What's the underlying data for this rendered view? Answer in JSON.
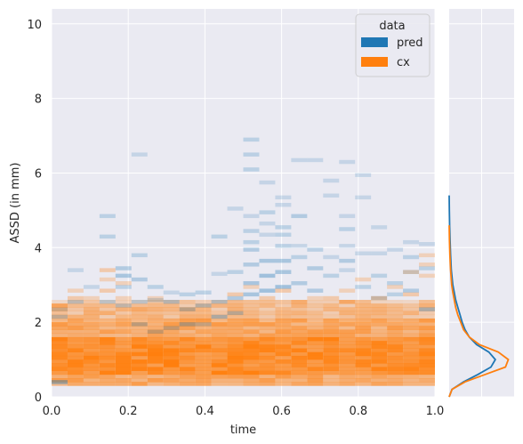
{
  "chart_data": [
    {
      "type": "heatmap",
      "xlabel": "time",
      "ylabel": "ASSD (in mm)",
      "xlim": [
        0,
        1
      ],
      "ylim": [
        0,
        10.4
      ],
      "xticks": [
        "0.0",
        "0.2",
        "0.4",
        "0.6",
        "0.8",
        "1.0"
      ],
      "yticks": [
        "0",
        "2",
        "4",
        "6",
        "8",
        "10"
      ],
      "grid": true,
      "legend": {
        "title": "data",
        "placement": "top-right",
        "entries": [
          "pred",
          "cx"
        ]
      },
      "x_bins": 24,
      "y_bin_width": 0.1,
      "series": [
        {
          "name": "pred",
          "color": "#1f77b4",
          "cells": [
            [
              0,
              0.35,
              0.9
            ],
            [
              0,
              2.1,
              0.5
            ],
            [
              0,
              2.3,
              0.4
            ],
            [
              1,
              3.35,
              0.4
            ],
            [
              1,
              2.5,
              0.5
            ],
            [
              2,
              2.9,
              0.4
            ],
            [
              3,
              4.8,
              0.5
            ],
            [
              3,
              4.25,
              0.5
            ],
            [
              3,
              2.5,
              0.5
            ],
            [
              4,
              3.4,
              0.6
            ],
            [
              4,
              3.2,
              0.7
            ],
            [
              4,
              2.9,
              0.5
            ],
            [
              4,
              2.4,
              0.5
            ],
            [
              5,
              6.45,
              0.4
            ],
            [
              5,
              3.75,
              0.5
            ],
            [
              5,
              3.1,
              0.6
            ],
            [
              5,
              2.5,
              0.5
            ],
            [
              5,
              1.9,
              0.6
            ],
            [
              6,
              2.9,
              0.5
            ],
            [
              6,
              2.55,
              0.5
            ],
            [
              6,
              1.7,
              0.5
            ],
            [
              7,
              2.75,
              0.4
            ],
            [
              7,
              2.5,
              0.6
            ],
            [
              7,
              1.8,
              0.5
            ],
            [
              8,
              2.7,
              0.5
            ],
            [
              8,
              2.3,
              0.6
            ],
            [
              8,
              1.9,
              0.7
            ],
            [
              9,
              2.75,
              0.5
            ],
            [
              9,
              2.4,
              0.6
            ],
            [
              9,
              1.9,
              0.5
            ],
            [
              10,
              4.25,
              0.5
            ],
            [
              10,
              3.25,
              0.4
            ],
            [
              10,
              2.5,
              0.6
            ],
            [
              10,
              2.1,
              0.7
            ],
            [
              11,
              5.0,
              0.4
            ],
            [
              11,
              3.3,
              0.5
            ],
            [
              11,
              2.6,
              0.6
            ],
            [
              11,
              2.2,
              0.6
            ],
            [
              12,
              6.85,
              0.5
            ],
            [
              12,
              6.45,
              0.5
            ],
            [
              12,
              6.05,
              0.5
            ],
            [
              12,
              4.8,
              0.4
            ],
            [
              12,
              4.4,
              0.5
            ],
            [
              12,
              4.1,
              0.5
            ],
            [
              12,
              3.9,
              0.6
            ],
            [
              12,
              3.5,
              0.6
            ],
            [
              12,
              3.0,
              0.7
            ],
            [
              12,
              2.7,
              0.7
            ],
            [
              13,
              5.7,
              0.4
            ],
            [
              13,
              4.9,
              0.5
            ],
            [
              13,
              4.6,
              0.4
            ],
            [
              13,
              4.3,
              0.4
            ],
            [
              13,
              3.6,
              0.7
            ],
            [
              13,
              3.2,
              0.8
            ],
            [
              13,
              2.8,
              0.8
            ],
            [
              14,
              5.3,
              0.4
            ],
            [
              14,
              5.1,
              0.4
            ],
            [
              14,
              4.5,
              0.5
            ],
            [
              14,
              4.3,
              0.5
            ],
            [
              14,
              4.0,
              0.5
            ],
            [
              14,
              3.6,
              0.7
            ],
            [
              14,
              3.3,
              0.7
            ],
            [
              14,
              2.9,
              0.8
            ],
            [
              15,
              6.3,
              0.4
            ],
            [
              15,
              4.8,
              0.6
            ],
            [
              15,
              4.0,
              0.4
            ],
            [
              15,
              3.7,
              0.5
            ],
            [
              15,
              3.0,
              0.6
            ],
            [
              16,
              6.3,
              0.4
            ],
            [
              16,
              3.9,
              0.5
            ],
            [
              16,
              3.4,
              0.6
            ],
            [
              16,
              2.8,
              0.6
            ],
            [
              17,
              5.75,
              0.4
            ],
            [
              17,
              5.35,
              0.4
            ],
            [
              17,
              3.7,
              0.4
            ],
            [
              17,
              3.2,
              0.5
            ],
            [
              18,
              6.25,
              0.4
            ],
            [
              18,
              4.8,
              0.4
            ],
            [
              18,
              4.45,
              0.5
            ],
            [
              18,
              4.0,
              0.4
            ],
            [
              18,
              3.6,
              0.6
            ],
            [
              18,
              3.35,
              0.4
            ],
            [
              19,
              5.9,
              0.4
            ],
            [
              19,
              5.3,
              0.4
            ],
            [
              19,
              3.8,
              0.4
            ],
            [
              19,
              2.9,
              0.5
            ],
            [
              20,
              4.5,
              0.4
            ],
            [
              20,
              3.8,
              0.4
            ],
            [
              20,
              3.2,
              0.5
            ],
            [
              20,
              2.6,
              0.6
            ],
            [
              21,
              3.9,
              0.4
            ],
            [
              21,
              3.0,
              0.5
            ],
            [
              21,
              2.7,
              0.5
            ],
            [
              22,
              4.1,
              0.4
            ],
            [
              22,
              3.7,
              0.5
            ],
            [
              22,
              3.3,
              0.5
            ],
            [
              22,
              2.8,
              0.6
            ],
            [
              23,
              4.05,
              0.4
            ],
            [
              23,
              3.4,
              0.5
            ],
            [
              23,
              2.3,
              0.7
            ]
          ]
        },
        {
          "name": "cx",
          "color": "#ff7f0e",
          "cells": [
            [
              0,
              2.4,
              0.5
            ],
            [
              0,
              1.9,
              0.4
            ],
            [
              0,
              1.5,
              0.5
            ],
            [
              1,
              2.8,
              0.4
            ],
            [
              1,
              2.6,
              0.5
            ],
            [
              2,
              2.2,
              0.4
            ],
            [
              2,
              2.6,
              0.4
            ],
            [
              3,
              3.35,
              0.5
            ],
            [
              3,
              3.1,
              0.4
            ],
            [
              3,
              2.8,
              0.5
            ],
            [
              4,
              3.0,
              0.4
            ],
            [
              4,
              2.6,
              0.4
            ],
            [
              5,
              2.3,
              0.4
            ],
            [
              6,
              2.6,
              0.4
            ],
            [
              6,
              2.3,
              0.4
            ],
            [
              7,
              2.3,
              0.4
            ],
            [
              9,
              2.1,
              0.4
            ],
            [
              10,
              2.4,
              0.5
            ],
            [
              11,
              2.7,
              0.5
            ],
            [
              12,
              2.9,
              0.4
            ],
            [
              13,
              2.6,
              0.5
            ],
            [
              14,
              2.8,
              0.5
            ],
            [
              14,
              2.5,
              0.4
            ],
            [
              15,
              2.5,
              0.5
            ],
            [
              16,
              2.6,
              0.4
            ],
            [
              17,
              2.6,
              0.5
            ],
            [
              18,
              2.8,
              0.4
            ],
            [
              18,
              2.5,
              0.5
            ],
            [
              19,
              3.1,
              0.4
            ],
            [
              20,
              2.6,
              0.5
            ],
            [
              21,
              2.9,
              0.4
            ],
            [
              22,
              3.3,
              0.4
            ],
            [
              22,
              2.7,
              0.5
            ],
            [
              23,
              3.75,
              0.4
            ],
            [
              23,
              3.5,
              0.4
            ],
            [
              23,
              3.2,
              0.4
            ]
          ]
        }
      ]
    },
    {
      "type": "line",
      "orientation": "vertical",
      "ylim": [
        0,
        10.4
      ],
      "series": [
        {
          "name": "pred",
          "color": "#1f77b4",
          "y": [
            0.0,
            0.2,
            0.4,
            0.6,
            0.8,
            1.0,
            1.2,
            1.4,
            1.6,
            1.8,
            2.0,
            2.2,
            2.4,
            2.6,
            2.8,
            3.0,
            3.4,
            3.8,
            4.2,
            4.6,
            5.0,
            5.4
          ],
          "density": [
            0.0,
            0.04,
            0.2,
            0.4,
            0.58,
            0.64,
            0.55,
            0.38,
            0.28,
            0.22,
            0.18,
            0.15,
            0.12,
            0.09,
            0.07,
            0.05,
            0.03,
            0.02,
            0.012,
            0.006,
            0.003,
            0.0
          ]
        },
        {
          "name": "cx",
          "color": "#ff7f0e",
          "y": [
            0.0,
            0.2,
            0.4,
            0.6,
            0.8,
            1.0,
            1.2,
            1.4,
            1.6,
            1.8,
            2.0,
            2.2,
            2.4,
            2.6,
            2.8,
            3.0,
            3.4,
            3.8,
            4.2,
            4.6
          ],
          "density": [
            0.0,
            0.04,
            0.22,
            0.5,
            0.78,
            0.82,
            0.68,
            0.42,
            0.28,
            0.2,
            0.16,
            0.12,
            0.09,
            0.07,
            0.05,
            0.035,
            0.02,
            0.01,
            0.004,
            0.0
          ]
        }
      ]
    }
  ]
}
